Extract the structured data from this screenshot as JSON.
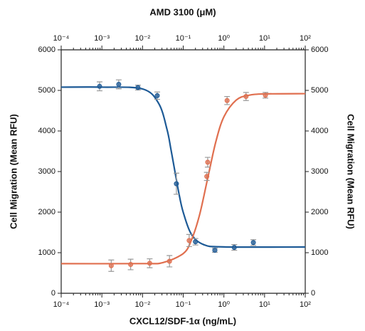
{
  "chart_data": {
    "type": "dose-response",
    "title": "AMD 3100 (μM)",
    "xlabel": "CXCL12/SDF-1α (ng/mL)",
    "ylabel": "Cell Migration (Mean RFU)",
    "y2label": "Cell Migration (Mean RFU)",
    "xscale": "log",
    "xlim": [
      0.0001,
      100
    ],
    "x2lim": [
      0.0001,
      100
    ],
    "xticks": [
      {
        "value": 0.0001,
        "label": "10⁻⁴"
      },
      {
        "value": 0.001,
        "label": "10⁻³"
      },
      {
        "value": 0.01,
        "label": "10⁻²"
      },
      {
        "value": 0.1,
        "label": "10⁻¹"
      },
      {
        "value": 1,
        "label": "10⁰"
      },
      {
        "value": 10,
        "label": "10¹"
      },
      {
        "value": 100,
        "label": "10²"
      }
    ],
    "x_minor_ticks": [
      0.0002,
      0.0003,
      0.0004,
      0.0005,
      0.0006,
      0.0007,
      0.0008,
      0.0009,
      0.002,
      0.003,
      0.004,
      0.005,
      0.006,
      0.007,
      0.008,
      0.009,
      0.02,
      0.03,
      0.04,
      0.05,
      0.06,
      0.07,
      0.08,
      0.09,
      0.2,
      0.3,
      0.4,
      0.5,
      0.6,
      0.7,
      0.8,
      0.9,
      2,
      3,
      4,
      5,
      6,
      7,
      8,
      9,
      20,
      30,
      40,
      50,
      60,
      70,
      80,
      90
    ],
    "ylim": [
      0,
      6000
    ],
    "yticks": [
      0,
      1000,
      2000,
      3000,
      4000,
      5000,
      6000
    ],
    "y2lim": [
      0,
      6000
    ],
    "y2ticks": [
      0,
      1000,
      2000,
      3000,
      4000,
      5000,
      6000
    ],
    "series": [
      {
        "color": "#1d5a96",
        "axis": "x2",
        "x": [
          0.00088,
          0.0026,
          0.0077,
          0.023,
          0.068,
          0.2,
          0.6,
          1.8,
          5.3
        ],
        "values": [
          5100,
          5150,
          5070,
          4870,
          2700,
          1270,
          1060,
          1130,
          1250
        ],
        "errors": [
          110,
          110,
          60,
          90,
          260,
          80,
          50,
          70,
          70
        ],
        "fit_x": [
          0.0001,
          0.001,
          0.01,
          0.025,
          0.04,
          0.05,
          0.063,
          0.079,
          0.1,
          0.158,
          0.316,
          1,
          100
        ],
        "fit_y": [
          5080,
          5080,
          5036,
          4677,
          4037,
          3542,
          2984,
          2445,
          1997,
          1458,
          1201,
          1143,
          1140
        ]
      },
      {
        "color": "#e06f4f",
        "axis": "x",
        "x": [
          0.0017,
          0.0051,
          0.015,
          0.046,
          0.14,
          0.38,
          0.4,
          1.2,
          3.5,
          10.5
        ],
        "values": [
          680,
          710,
          740,
          790,
          1300,
          2880,
          3230,
          4750,
          4850,
          4880
        ],
        "errors": [
          140,
          130,
          110,
          140,
          150,
          100,
          120,
          100,
          100,
          70
        ],
        "fit_x": [
          0.0001,
          0.01,
          0.0316,
          0.1,
          0.158,
          0.251,
          0.398,
          0.631,
          1,
          2,
          4,
          10,
          100
        ],
        "fit_y": [
          730,
          731,
          756,
          979,
          1304,
          1923,
          2825,
          3727,
          4348,
          4760,
          4878,
          4913,
          4920
        ]
      }
    ]
  }
}
